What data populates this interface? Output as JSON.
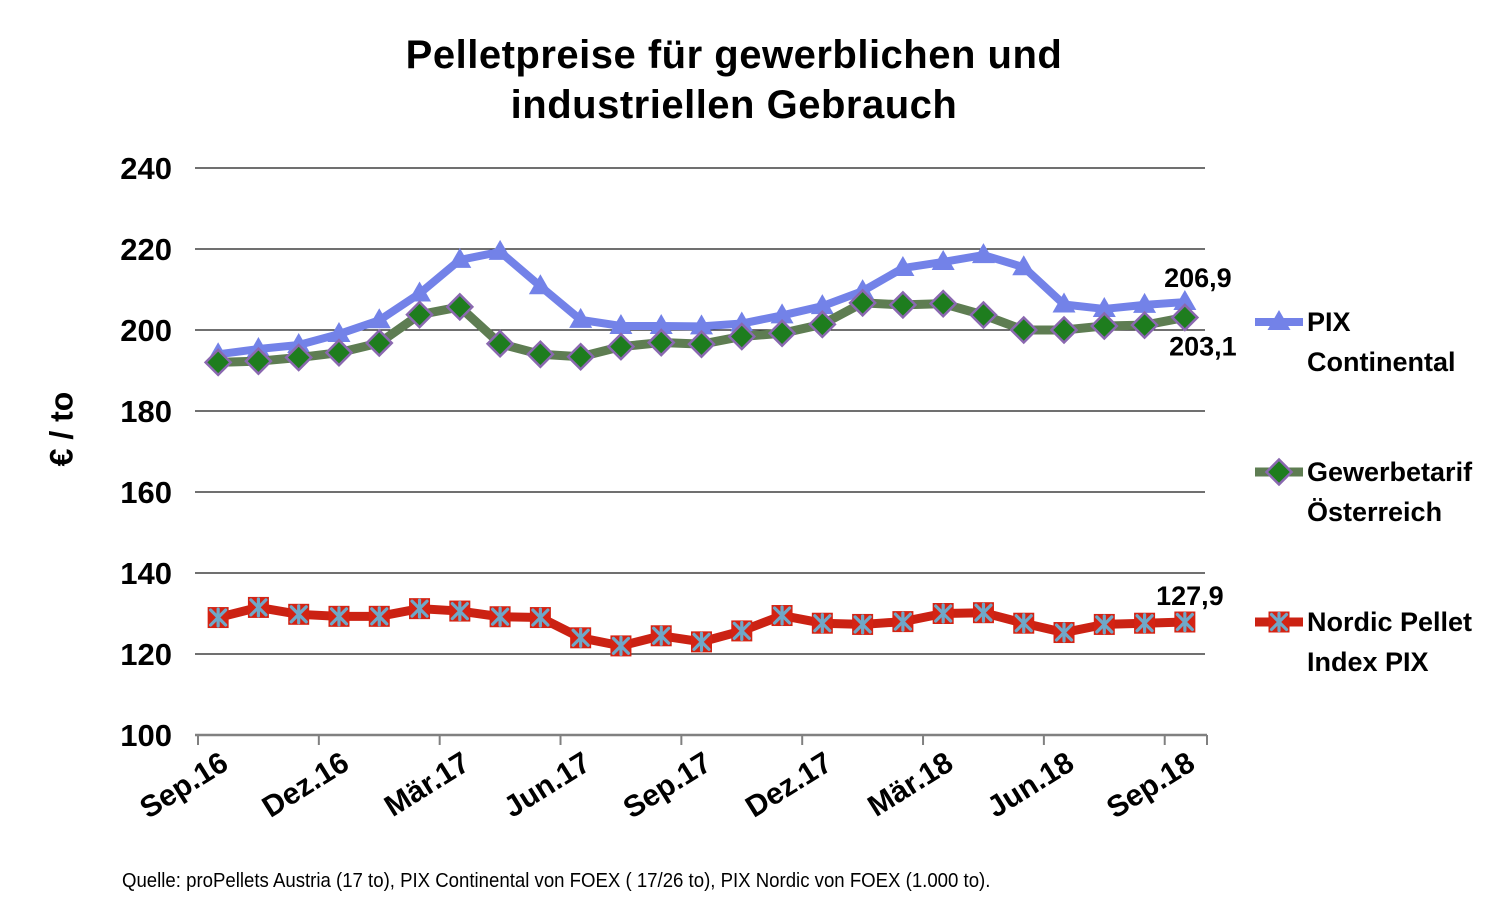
{
  "title": {
    "lines": [
      "Pelletpreise für gewerblichen und",
      "industriellen Gebrauch"
    ]
  },
  "source_note": "Quelle: proPellets Austria (17 to), PIX Continental von FOEX ( 17/26 to), PIX Nordic von FOEX (1.000 to).",
  "colors": {
    "gridline": "#1a1a1a",
    "axis": "#808080",
    "text": "#000000"
  },
  "chart_data": {
    "type": "line",
    "title": "Pelletpreise für gewerblichen und industriellen Gebrauch",
    "xlabel": "",
    "ylabel": "€ / to",
    "ylim": [
      100,
      240
    ],
    "yticks": [
      240,
      220,
      200,
      180,
      160,
      140,
      120,
      100
    ],
    "grid": "horizontal",
    "legend_position": "right",
    "x": [
      "Sep.16",
      "Okt.16",
      "Nov.16",
      "Dez.16",
      "Jan.17",
      "Feb.17",
      "Mär.17",
      "Apr.17",
      "Mai.17",
      "Jun.17",
      "Jul.17",
      "Aug.17",
      "Sep.17",
      "Okt.17",
      "Nov.17",
      "Dez.17",
      "Jan.18",
      "Feb.18",
      "Mär.18",
      "Apr.18",
      "Mai.18",
      "Jun.18",
      "Jul.18",
      "Aug.18",
      "Sep.18"
    ],
    "xtick_labels_shown": [
      "Sep.16",
      "Dez.16",
      "Mär.17",
      "Jun.17",
      "Sep.17",
      "Dez.17",
      "Mär.18",
      "Jun.18",
      "Sep.18"
    ],
    "series": [
      {
        "name": "PIX Continental",
        "legend_lines": [
          "PIX",
          "Continental"
        ],
        "color": "#7382E8",
        "marker": "triangle",
        "marker_fill": "#7382E8",
        "end_label": "206,9",
        "values": [
          194.0,
          195.3,
          196.3,
          199.0,
          202.4,
          209.0,
          217.3,
          219.3,
          210.8,
          202.5,
          201.0,
          201.0,
          200.9,
          201.6,
          203.6,
          205.9,
          209.6,
          215.3,
          216.8,
          218.5,
          215.5,
          206.3,
          205.2,
          206.2,
          206.9
        ]
      },
      {
        "name": "Gewerbetarif Österreich",
        "legend_lines": [
          "Gewerbetarif",
          "Österreich"
        ],
        "color": "#5E7D52",
        "marker": "diamond",
        "marker_fill": "#1E7D1E",
        "marker_stroke": "#8A68B0",
        "end_label": "203,1",
        "values": [
          192.0,
          192.3,
          193.2,
          194.4,
          196.8,
          203.8,
          205.7,
          196.6,
          194.0,
          193.4,
          195.9,
          196.9,
          196.5,
          198.4,
          199.2,
          201.4,
          206.7,
          206.2,
          206.5,
          203.7,
          200.0,
          200.0,
          201.0,
          201.2,
          203.1
        ]
      },
      {
        "name": "Nordic Pellet Index PIX",
        "legend_lines": [
          "Nordic Pellet",
          "Index PIX"
        ],
        "color": "#CB2213",
        "marker": "square-star",
        "marker_fill": "#D42313",
        "marker_stroke": "#6FA8C8",
        "end_label": "127,9",
        "values": [
          129.0,
          131.5,
          129.8,
          129.3,
          129.3,
          131.2,
          130.6,
          129.2,
          129.0,
          124.0,
          122.0,
          124.5,
          123.0,
          125.7,
          129.5,
          127.6,
          127.3,
          128.0,
          130.0,
          130.2,
          127.6,
          125.3,
          127.3,
          127.6,
          127.9
        ]
      }
    ]
  }
}
